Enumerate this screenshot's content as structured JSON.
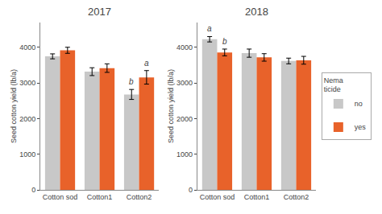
{
  "chart_data": [
    {
      "type": "bar",
      "title": "2017",
      "categories": [
        "Cotton sod",
        "Cotton1",
        "Cotton2"
      ],
      "series": [
        {
          "name": "no",
          "color": "#C8C8C8",
          "values": [
            3750,
            3320,
            2680
          ],
          "errors": [
            70,
            110,
            140
          ]
        },
        {
          "name": "yes",
          "color": "#E8622A",
          "values": [
            3920,
            3420,
            3160
          ],
          "errors": [
            85,
            120,
            190
          ]
        }
      ],
      "annotations": [
        {
          "category": "Cotton2",
          "series": "no",
          "label": "b"
        },
        {
          "category": "Cotton2",
          "series": "yes",
          "label": "a"
        }
      ],
      "ylabel": "Seed cotton yield (lb/a)",
      "ylim": [
        0,
        4700
      ],
      "yticks": [
        0,
        1000,
        2000,
        3000,
        4000
      ],
      "grid": false,
      "legend": "right",
      "legend_title": "Nema\nticide"
    },
    {
      "type": "bar",
      "title": "2018",
      "categories": [
        "Cotton sod",
        "Cotton1",
        "Cotton2"
      ],
      "series": [
        {
          "name": "no",
          "color": "#C8C8C8",
          "values": [
            4230,
            3840,
            3620
          ],
          "errors": [
            75,
            115,
            80
          ]
        },
        {
          "name": "yes",
          "color": "#E8622A",
          "values": [
            3860,
            3720,
            3640
          ],
          "errors": [
            95,
            105,
            110
          ]
        }
      ],
      "annotations": [
        {
          "category": "Cotton sod",
          "series": "no",
          "label": "a"
        },
        {
          "category": "Cotton sod",
          "series": "yes",
          "label": "b"
        }
      ],
      "ylabel": "Seed cotton yield (lb/a)",
      "ylim": [
        0,
        4700
      ],
      "yticks": [
        0,
        1000,
        2000,
        3000,
        4000
      ],
      "grid": false,
      "legend": "right",
      "legend_title": "Nema\nticide"
    }
  ]
}
